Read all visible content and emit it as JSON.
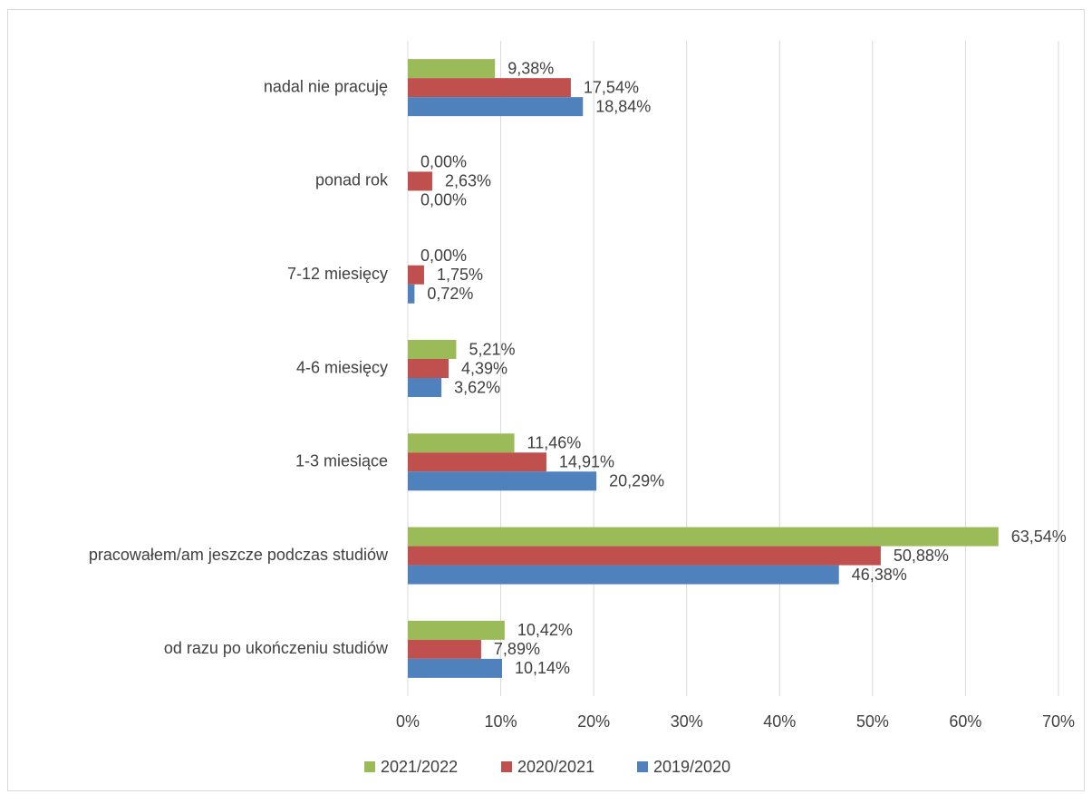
{
  "chart_data": {
    "type": "bar",
    "orientation": "horizontal",
    "categories": [
      "nadal nie pracuję",
      "ponad rok",
      "7-12 miesięcy",
      "4-6 miesięcy",
      "1-3 miesiące",
      "pracowałem/am jeszcze podczas studiów",
      "od razu po ukończeniu studiów"
    ],
    "series": [
      {
        "name": "2021/2022",
        "color": "#9bbb59",
        "values": [
          9.38,
          0,
          0,
          5.21,
          11.46,
          63.54,
          10.42
        ],
        "value_labels": [
          "9,38%",
          "0,00%",
          "0,00%",
          "5,21%",
          "11,46%",
          "63,54%",
          "10,42%"
        ]
      },
      {
        "name": "2020/2021",
        "color": "#c0504d",
        "values": [
          17.54,
          2.63,
          1.75,
          4.39,
          14.91,
          50.88,
          7.89
        ],
        "value_labels": [
          "17,54%",
          "2,63%",
          "1,75%",
          "4,39%",
          "14,91%",
          "50,88%",
          "7,89%"
        ]
      },
      {
        "name": "2019/2020",
        "color": "#4f81bd",
        "values": [
          18.84,
          0,
          0.72,
          3.62,
          20.29,
          46.38,
          10.14
        ],
        "value_labels": [
          "18,84%",
          "0,00%",
          "0,72%",
          "3,62%",
          "20,29%",
          "46,38%",
          "10,14%"
        ]
      }
    ],
    "xlim": [
      0,
      70
    ],
    "xticks": [
      {
        "value": 0,
        "label": "0%"
      },
      {
        "value": 10,
        "label": "10%"
      },
      {
        "value": 20,
        "label": "20%"
      },
      {
        "value": 30,
        "label": "30%"
      },
      {
        "value": 40,
        "label": "40%"
      },
      {
        "value": 50,
        "label": "50%"
      },
      {
        "value": 60,
        "label": "60%"
      },
      {
        "value": 70,
        "label": "70%"
      }
    ],
    "grid": true,
    "legend": "bottom"
  }
}
